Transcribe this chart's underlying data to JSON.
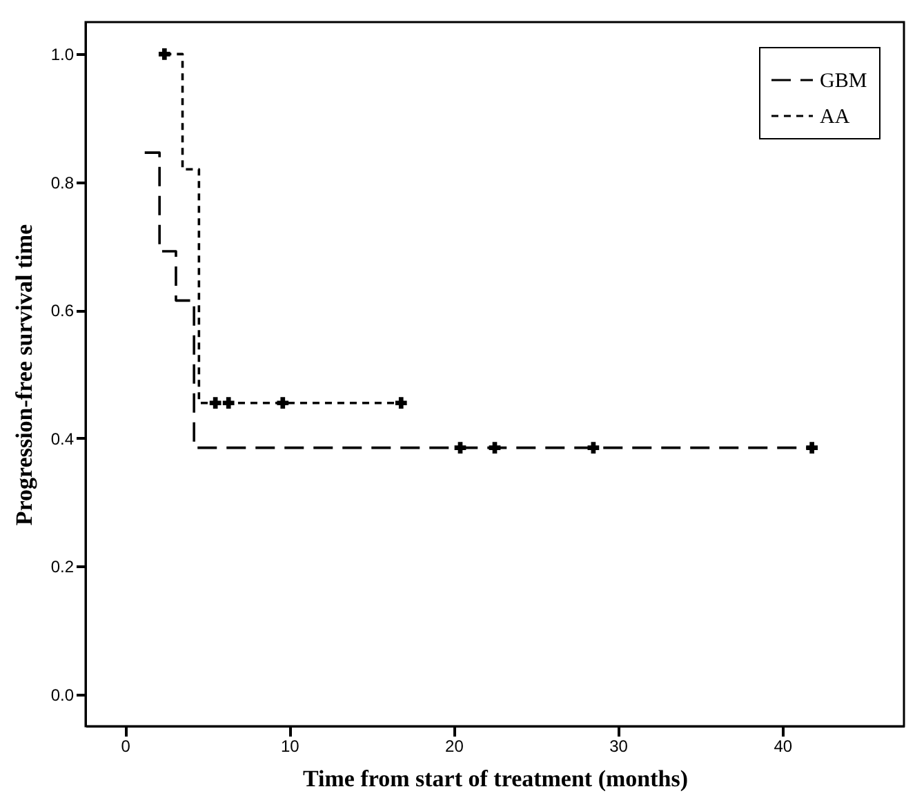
{
  "chart_data": {
    "type": "step",
    "xlabel": "Time from start of treatment (months)",
    "ylabel": "Progression-free survival time",
    "xlim": [
      -2.4,
      47.4
    ],
    "xticks": [
      0,
      10,
      20,
      30,
      40
    ],
    "ylim": [
      -0.05,
      1.05
    ],
    "yticks": [
      {
        "value": 0,
        "label": "0.0"
      },
      {
        "value": 0.2,
        "label": "0.2"
      },
      {
        "value": 0.4,
        "label": "0.4"
      },
      {
        "value": 0.6,
        "label": "0.6"
      },
      {
        "value": 0.8,
        "label": "0.8"
      },
      {
        "value": 1,
        "label": "1.0"
      }
    ],
    "grid": false,
    "legend": "top right",
    "series": [
      {
        "name": "GBM",
        "color": "#000000",
        "line_style": "dashed",
        "marker": "none",
        "x": [
          1.2,
          2.1,
          3.1,
          4.2,
          41.8
        ],
        "values": [
          0.846,
          0.692,
          0.615,
          0.385,
          0.385
        ]
      },
      {
        "name": "AA",
        "color": "#000000",
        "line_style": "dotted",
        "marker": "none",
        "x": [
          2.4,
          3.5,
          4.5,
          16.8
        ],
        "values": [
          1.0,
          0.82,
          0.455,
          0.455
        ]
      },
      {
        "type": "scatter",
        "color": "#000000",
        "marker": "cross",
        "x": [
          20.4,
          22.5,
          28.5,
          41.8
        ],
        "values": [
          0.385,
          0.385,
          0.385,
          0.385
        ]
      },
      {
        "type": "scatter",
        "color": "#000000",
        "marker": "cross",
        "x": [
          2.4,
          5.5,
          6.3,
          9.6,
          16.8
        ],
        "values": [
          1.0,
          0.455,
          0.455,
          0.455,
          0.455
        ]
      }
    ]
  }
}
